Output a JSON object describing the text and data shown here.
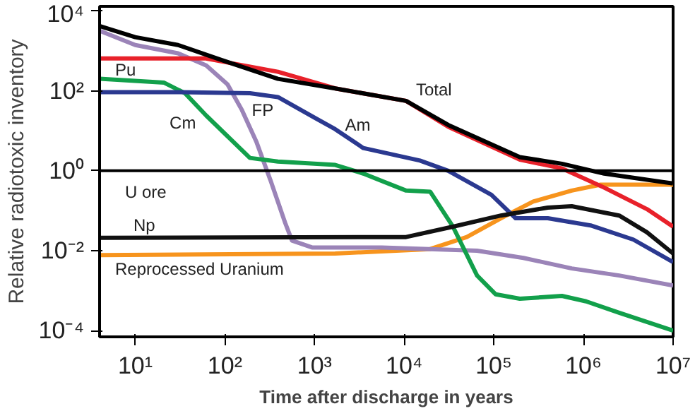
{
  "chart_data": {
    "type": "line",
    "xlabel": "Time after discharge in years",
    "ylabel": "Relative radiotoxic inventory",
    "log": "xy",
    "grid": false,
    "marker": "none",
    "line_style": "solid",
    "xlim": [
      4,
      10000000
    ],
    "ylim": [
      7e-05,
      13000
    ],
    "xticks": [
      {
        "value": 10,
        "label": "10¹"
      },
      {
        "value": 100,
        "label": "10²"
      },
      {
        "value": 1000,
        "label": "10³"
      },
      {
        "value": 10000,
        "label": "10⁴"
      },
      {
        "value": 100000,
        "label": "10⁵"
      },
      {
        "value": 1000000,
        "label": "10⁶"
      },
      {
        "value": 10000000,
        "label": "10⁷"
      }
    ],
    "yticks": [
      {
        "value": 0.0001,
        "label": "10⁻⁴"
      },
      {
        "value": 0.01,
        "label": "10⁻²"
      },
      {
        "value": 1,
        "label": "10⁰"
      },
      {
        "value": 100,
        "label": "10²"
      },
      {
        "value": 10000,
        "label": "10⁴"
      }
    ],
    "ref_lines": [
      {
        "axis": "y",
        "value": 1,
        "label": "U ore",
        "color": "#000000"
      }
    ],
    "series": [
      {
        "name": "Reprocessed Uranium",
        "color": "#f7941d",
        "x": [
          4,
          1700,
          19500,
          50000,
          120000,
          275000,
          740000,
          1550000,
          10000000
        ],
        "values": [
          0.0078,
          0.0085,
          0.011,
          0.022,
          0.065,
          0.17,
          0.32,
          0.45,
          0.45
        ]
      },
      {
        "name": "FP",
        "color": "#9b84b8",
        "x": [
          4,
          10,
          30,
          62,
          107,
          155,
          224,
          324,
          470,
          560,
          950,
          5600,
          65000,
          214000,
          740000,
          2500000,
          10000000
        ],
        "values": [
          3200,
          1400,
          870,
          430,
          145,
          33,
          5.4,
          0.56,
          0.05,
          0.018,
          0.012,
          0.012,
          0.01,
          0.0066,
          0.0036,
          0.0024,
          0.00135
        ]
      },
      {
        "name": "Cm",
        "color": "#12a04b",
        "x": [
          4,
          21,
          36,
          62,
          190,
          390,
          1700,
          3500,
          10500,
          19500,
          35000,
          65000,
          105000,
          195000,
          575000,
          1070000,
          2500000,
          10000000
        ],
        "values": [
          200,
          160,
          87,
          24,
          2.1,
          1.7,
          1.4,
          0.85,
          0.32,
          0.3,
          0.04,
          0.0024,
          0.00081,
          0.00063,
          0.00074,
          0.00054,
          0.00028,
          0.0001
        ]
      },
      {
        "name": "Am",
        "color": "#2b3990",
        "x": [
          4,
          30,
          190,
          390,
          1050,
          1700,
          3500,
          15000,
          31000,
          94000,
          175000,
          400000,
          1200000,
          3600000,
          10000000
        ],
        "values": [
          93,
          93,
          87,
          70,
          20,
          11,
          3.7,
          1.8,
          1.0,
          0.25,
          0.065,
          0.065,
          0.043,
          0.019,
          0.0052
        ]
      },
      {
        "name": "Np",
        "color": "#111111",
        "x": [
          4,
          10500,
          35000,
          120000,
          400000,
          740000,
          2500000,
          5100000,
          10000000
        ],
        "values": [
          0.021,
          0.022,
          0.04,
          0.076,
          0.12,
          0.13,
          0.076,
          0.029,
          0.0085
        ]
      },
      {
        "name": "Pu",
        "color": "#e8212a",
        "x": [
          4,
          60,
          390,
          1700,
          10500,
          31000,
          195000,
          575000,
          1700000,
          5100000,
          10000000
        ],
        "values": [
          650,
          650,
          300,
          115,
          56,
          12.6,
          1.9,
          1.15,
          0.38,
          0.11,
          0.04
        ]
      },
      {
        "name": "Total",
        "color": "#000000",
        "x": [
          4,
          10,
          30,
          90,
          390,
          1700,
          10500,
          31000,
          195000,
          575000,
          1700000,
          10000000
        ],
        "values": [
          4200,
          2200,
          1400,
          600,
          200,
          115,
          56,
          14,
          2.2,
          1.5,
          0.85,
          0.48
        ]
      }
    ]
  }
}
